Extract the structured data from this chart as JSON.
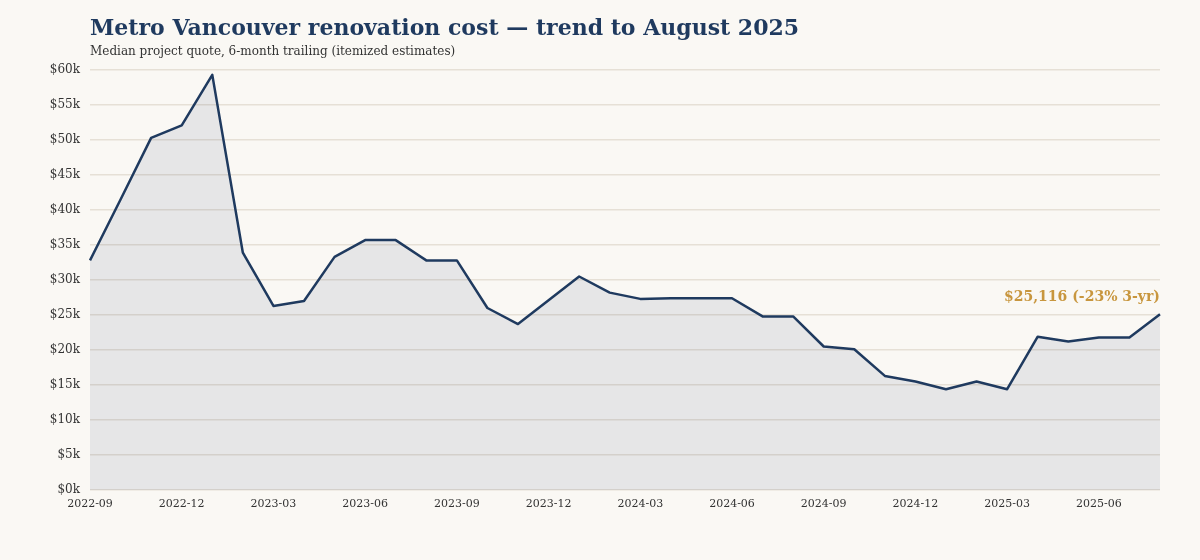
{
  "chart_data": {
    "type": "area",
    "title": "Metro Vancouver renovation cost — trend to August 2025",
    "subtitle": "Median project quote, 6-month trailing (itemized estimates)",
    "categories": [
      "2022-09",
      null,
      null,
      "2022-12",
      null,
      null,
      "2023-03",
      null,
      null,
      "2023-06",
      null,
      null,
      "2023-09",
      null,
      null,
      "2023-12",
      null,
      null,
      "2024-03",
      null,
      null,
      "2024-06",
      null,
      null,
      "2024-09",
      null,
      null,
      "2024-12",
      null,
      null,
      "2025-03",
      null,
      null,
      "2025-06",
      null,
      null
    ],
    "series": [
      {
        "color": "#1f3a5f",
        "values": [
          32800,
          41500,
          50300,
          52100,
          59300,
          33900,
          26300,
          27000,
          33300,
          35700,
          35700,
          32800,
          32800,
          26000,
          23700,
          27100,
          30500,
          28200,
          27300,
          27400,
          27400,
          27400,
          24800,
          24800,
          20500,
          20100,
          16300,
          15500,
          14400,
          15500,
          14400,
          21900,
          21200,
          21800,
          21800,
          25116
        ],
        "value_labels": [
          null,
          null,
          null,
          null,
          null,
          null,
          null,
          null,
          null,
          null,
          null,
          null,
          null,
          null,
          null,
          null,
          null,
          null,
          null,
          null,
          null,
          null,
          null,
          null,
          null,
          null,
          null,
          null,
          null,
          null,
          null,
          null,
          null,
          null,
          null,
          "$25,116 (-23% 3-yr)"
        ]
      }
    ],
    "ylim": [
      0,
      60000
    ],
    "yticks": [
      {
        "value": 0,
        "label": "$0k"
      },
      {
        "value": 5000,
        "label": "$5k"
      },
      {
        "value": 10000,
        "label": "$10k"
      },
      {
        "value": 15000,
        "label": "$15k"
      },
      {
        "value": 20000,
        "label": "$20k"
      },
      {
        "value": 25000,
        "label": "$25k"
      },
      {
        "value": 30000,
        "label": "$30k"
      },
      {
        "value": 35000,
        "label": "$35k"
      },
      {
        "value": 40000,
        "label": "$40k"
      },
      {
        "value": 45000,
        "label": "$45k"
      },
      {
        "value": 50000,
        "label": "$50k"
      },
      {
        "value": 55000,
        "label": "$55k"
      },
      {
        "value": 60000,
        "label": "$60k"
      }
    ],
    "grid": "y",
    "marker": "none",
    "line_style": "solid"
  }
}
